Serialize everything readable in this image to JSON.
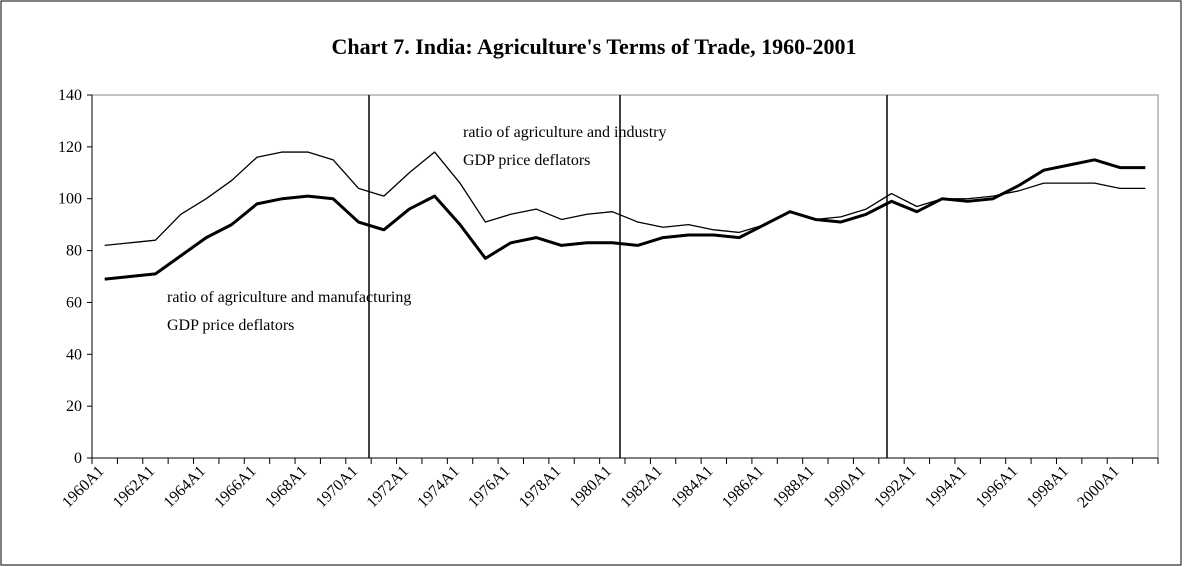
{
  "chart_data": {
    "type": "line",
    "title": "Chart 7. India: Agriculture's Terms of Trade, 1960-2001",
    "annotations": [
      "ratio of agriculture and industry",
      "GDP price deflators",
      "ratio of agriculture and manufacturing",
      "GDP price deflators"
    ],
    "categories": [
      "1960A1",
      null,
      "1962A1",
      null,
      "1964A1",
      null,
      "1966A1",
      null,
      "1968A1",
      null,
      "1970A1",
      null,
      "1972A1",
      null,
      "1974A1",
      null,
      "1976A1",
      null,
      "1978A1",
      null,
      "1980A1",
      null,
      "1982A1",
      null,
      "1984A1",
      null,
      "1986A1",
      null,
      "1988A1",
      null,
      "1990A1",
      null,
      "1992A1",
      null,
      "1994A1",
      null,
      "1996A1",
      null,
      "1998A1",
      null,
      "2000A1",
      null
    ],
    "series": [
      {
        "color": "#000000",
        "values": [
          82,
          83,
          84,
          94,
          100,
          107,
          116,
          118,
          118,
          115,
          104,
          101,
          110,
          118,
          106,
          91,
          94,
          96,
          92,
          94,
          95,
          91,
          89,
          90,
          88,
          87,
          90,
          95,
          92,
          93,
          96,
          102,
          97,
          100,
          100,
          101,
          103,
          106,
          106,
          106,
          104,
          104
        ]
      },
      {
        "color": "#000000",
        "values": [
          69,
          70,
          71,
          78,
          85,
          90,
          98,
          100,
          101,
          100,
          91,
          88,
          96,
          101,
          90,
          77,
          83,
          85,
          82,
          83,
          83,
          82,
          85,
          86,
          86,
          85,
          90,
          95,
          92,
          91,
          94,
          99,
          95,
          100,
          99,
          100,
          105,
          111,
          113,
          115,
          112,
          112
        ]
      }
    ],
    "ylim": [
      0,
      140
    ],
    "yticks": [
      0,
      20,
      40,
      60,
      80,
      100,
      120,
      140
    ]
  }
}
